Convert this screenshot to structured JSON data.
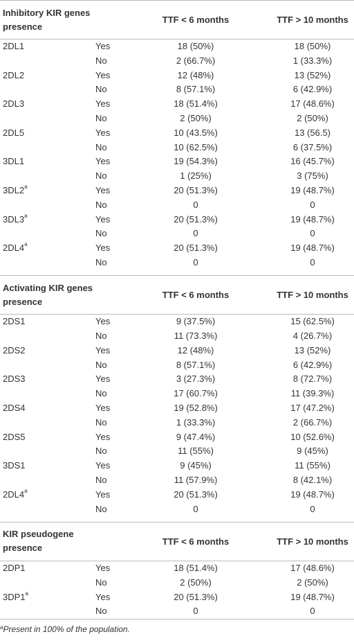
{
  "sections": [
    {
      "title": "Inhibitory KIR genes presence",
      "columns": [
        "TTF < 6 months",
        "TTF > 10 months"
      ],
      "rows": [
        {
          "gene": "2DL1",
          "presence": "Yes",
          "lt6": "18 (50%)",
          "gt10": "18 (50%)"
        },
        {
          "presence": "No",
          "lt6": "2 (66.7%)",
          "gt10": "1 (33.3%)"
        },
        {
          "gene": "2DL2",
          "presence": "Yes",
          "lt6": "12 (48%)",
          "gt10": "13 (52%)"
        },
        {
          "presence": "No",
          "lt6": "8 (57.1%)",
          "gt10": "6 (42.9%)"
        },
        {
          "gene": "2DL3",
          "presence": "Yes",
          "lt6": "18 (51.4%)",
          "gt10": "17 (48.6%)"
        },
        {
          "presence": "No",
          "lt6": "2 (50%)",
          "gt10": "2 (50%)"
        },
        {
          "gene": "2DL5",
          "presence": "Yes",
          "lt6": "10 (43.5%)",
          "gt10": "13 (56.5)"
        },
        {
          "presence": "No",
          "lt6": "10 (62.5%)",
          "gt10": "6 (37.5%)"
        },
        {
          "gene": "3DL1",
          "presence": "Yes",
          "lt6": "19 (54.3%)",
          "gt10": "16 (45.7%)"
        },
        {
          "presence": "No",
          "lt6": "1 (25%)",
          "gt10": "3 (75%)"
        },
        {
          "gene": "3DL2",
          "note": "a",
          "presence": "Yes",
          "lt6": "20 (51.3%)",
          "gt10": "19 (48.7%)"
        },
        {
          "presence": "No",
          "lt6": "0",
          "gt10": "0"
        },
        {
          "gene": "3DL3",
          "note": "a",
          "presence": "Yes",
          "lt6": "20 (51.3%)",
          "gt10": "19 (48.7%)"
        },
        {
          "presence": "No",
          "lt6": "0",
          "gt10": "0"
        },
        {
          "gene": "2DL4",
          "note": "a",
          "presence": "Yes",
          "lt6": "20 (51.3%)",
          "gt10": "19 (48.7%)"
        },
        {
          "presence": "No",
          "lt6": "0",
          "gt10": "0"
        }
      ]
    },
    {
      "title": "Activating KIR genes presence",
      "columns": [
        "TTF < 6 months",
        "TTF > 10 months"
      ],
      "rows": [
        {
          "gene": "2DS1",
          "presence": "Yes",
          "lt6": "9 (37.5%)",
          "gt10": "15 (62.5%)"
        },
        {
          "presence": "No",
          "lt6": "11 (73.3%)",
          "gt10": "4 (26.7%)"
        },
        {
          "gene": "2DS2",
          "presence": "Yes",
          "lt6": "12 (48%)",
          "gt10": "13 (52%)"
        },
        {
          "presence": "No",
          "lt6": "8 (57.1%)",
          "gt10": "6 (42.9%)"
        },
        {
          "gene": "2DS3",
          "presence": "Yes",
          "lt6": "3 (27.3%)",
          "gt10": "8 (72.7%)"
        },
        {
          "presence": "No",
          "lt6": "17 (60.7%)",
          "gt10": "11 (39.3%)"
        },
        {
          "gene": "2DS4",
          "presence": "Yes",
          "lt6": "19 (52.8%)",
          "gt10": "17 (47.2%)"
        },
        {
          "presence": "No",
          "lt6": "1 (33.3%)",
          "gt10": "2 (66.7%)"
        },
        {
          "gene": "2DS5",
          "presence": "Yes",
          "lt6": "9 (47.4%)",
          "gt10": "10 (52.6%)"
        },
        {
          "presence": "No",
          "lt6": "11 (55%)",
          "gt10": "9 (45%)"
        },
        {
          "gene": "3DS1",
          "presence": "Yes",
          "lt6": "9 (45%)",
          "gt10": "11 (55%)"
        },
        {
          "presence": "No",
          "lt6": "11 (57.9%)",
          "gt10": "8 (42.1%)"
        },
        {
          "gene": "2DL4",
          "note": "a",
          "presence": "Yes",
          "lt6": "20 (51.3%)",
          "gt10": "19 (48.7%)"
        },
        {
          "presence": "No",
          "lt6": "0",
          "gt10": "0"
        }
      ]
    },
    {
      "title": "KIR pseudogene presence",
      "columns": [
        "TTF < 6 months",
        "TTF > 10 months"
      ],
      "rows": [
        {
          "gene": "2DP1",
          "presence": "Yes",
          "lt6": "18 (51.4%)",
          "gt10": "17 (48.6%)"
        },
        {
          "presence": "No",
          "lt6": "2 (50%)",
          "gt10": "2 (50%)"
        },
        {
          "gene": "3DP1",
          "note": "a",
          "presence": "Yes",
          "lt6": "20 (51.3%)",
          "gt10": "19 (48.7%)"
        },
        {
          "presence": "No",
          "lt6": "0",
          "gt10": "0"
        }
      ]
    }
  ],
  "footnote": {
    "mark": "a",
    "text": "Present in 100% of the population."
  }
}
